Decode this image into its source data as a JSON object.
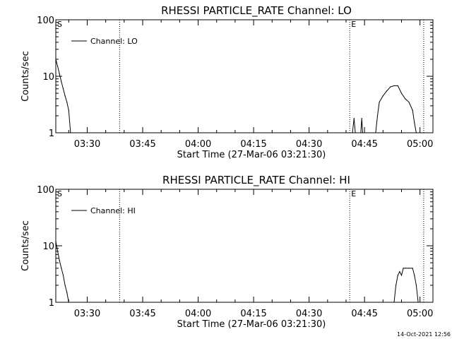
{
  "footer_timestamp": "14-Oct-2021 12:56",
  "colors": {
    "background": "#ffffff",
    "foreground": "#000000"
  },
  "chart_data": [
    {
      "type": "line",
      "title": "RHESSI PARTICLE_RATE Channel: LO",
      "xlabel": "Start Time (27-Mar-06 03:21:30)",
      "ylabel": "Counts/sec",
      "y_scale": "log",
      "ylim": [
        1,
        100
      ],
      "y_ticks": [
        1,
        10,
        100
      ],
      "y_tick_labels": [
        "1",
        "10",
        "100"
      ],
      "xlim": [
        "03:21:30",
        "05:03:30"
      ],
      "x_ticks": [
        "03:30",
        "03:45",
        "04:00",
        "04:15",
        "04:30",
        "04:45",
        "05:00"
      ],
      "legend": {
        "position": "top-left",
        "entries": [
          "Channel: LO"
        ]
      },
      "markers": [
        {
          "label": "S",
          "time": "03:21:30"
        },
        {
          "label": "",
          "time": "03:38:45"
        },
        {
          "label": "E",
          "time": "04:41:00"
        },
        {
          "label": "",
          "time": "05:01:00"
        }
      ],
      "series": [
        {
          "name": "Channel: LO",
          "segments": [
            {
              "x": [
                "03:21:30",
                "03:22:00",
                "03:22:30",
                "03:23:00",
                "03:23:30",
                "03:24:00",
                "03:24:30",
                "03:25:00",
                "03:25:30"
              ],
              "y": [
                20,
                15,
                11,
                8,
                6,
                4.5,
                3.5,
                2.5,
                1.0
              ]
            },
            {
              "x": [
                "04:41:45",
                "04:42:10",
                "04:42:30"
              ],
              "y": [
                1.0,
                1.8,
                1.0
              ]
            },
            {
              "x": [
                "04:44:00",
                "04:44:15",
                "04:44:30"
              ],
              "y": [
                1.0,
                1.8,
                1.0
              ]
            },
            {
              "x": [
                "04:48:00",
                "04:48:30",
                "04:49:00",
                "04:50:00",
                "04:51:00",
                "04:52:00",
                "04:53:00",
                "04:54:00",
                "04:55:00",
                "04:56:00",
                "04:57:00",
                "04:58:00",
                "04:58:30",
                "04:59:00"
              ],
              "y": [
                1.0,
                2.0,
                3.5,
                4.5,
                5.5,
                6.5,
                6.8,
                6.8,
                5.0,
                4.0,
                3.5,
                2.5,
                1.5,
                1.0
              ]
            }
          ]
        }
      ]
    },
    {
      "type": "line",
      "title": "RHESSI PARTICLE_RATE Channel: HI",
      "xlabel": "Start Time (27-Mar-06 03:21:30)",
      "ylabel": "Counts/sec",
      "y_scale": "log",
      "ylim": [
        1,
        100
      ],
      "y_ticks": [
        1,
        10,
        100
      ],
      "y_tick_labels": [
        "1",
        "10",
        "100"
      ],
      "xlim": [
        "03:21:30",
        "05:03:30"
      ],
      "x_ticks": [
        "03:30",
        "03:45",
        "04:00",
        "04:15",
        "04:30",
        "04:45",
        "05:00"
      ],
      "legend": {
        "position": "top-left",
        "entries": [
          "Channel: HI"
        ]
      },
      "markers": [
        {
          "label": "S",
          "time": "03:21:30"
        },
        {
          "label": "",
          "time": "03:38:45"
        },
        {
          "label": "E",
          "time": "04:41:00"
        },
        {
          "label": "",
          "time": "05:01:00"
        }
      ],
      "series": [
        {
          "name": "Channel: HI",
          "segments": [
            {
              "x": [
                "03:21:30",
                "03:22:00",
                "03:22:30",
                "03:23:00",
                "03:23:30",
                "03:24:00",
                "03:24:30",
                "03:25:00"
              ],
              "y": [
                12,
                8,
                5.5,
                4,
                3,
                2,
                1.5,
                1.0
              ]
            },
            {
              "x": [
                "04:53:00",
                "04:53:30",
                "04:54:00",
                "04:54:30",
                "04:55:00",
                "04:55:30",
                "04:56:00",
                "04:57:00",
                "04:58:00",
                "04:58:30",
                "04:59:00",
                "04:59:30"
              ],
              "y": [
                1.0,
                2.0,
                3.0,
                3.5,
                3.0,
                4.0,
                4.0,
                4.0,
                4.0,
                3.0,
                2.0,
                1.0
              ]
            }
          ]
        }
      ]
    }
  ]
}
